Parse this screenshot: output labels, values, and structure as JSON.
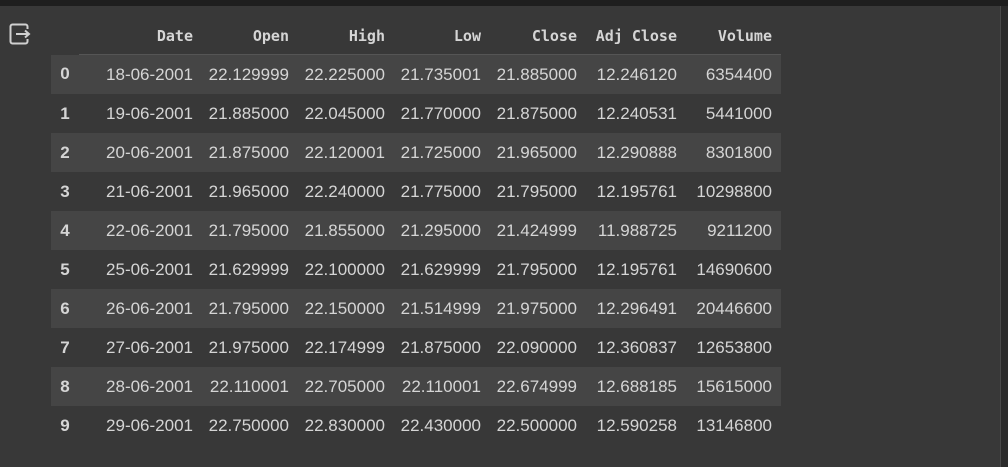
{
  "table": {
    "columns": [
      "Date",
      "Open",
      "High",
      "Low",
      "Close",
      "Adj Close",
      "Volume"
    ],
    "rows": [
      {
        "index": "0",
        "cells": [
          "18-06-2001",
          "22.129999",
          "22.225000",
          "21.735001",
          "21.885000",
          "12.246120",
          "6354400"
        ]
      },
      {
        "index": "1",
        "cells": [
          "19-06-2001",
          "21.885000",
          "22.045000",
          "21.770000",
          "21.875000",
          "12.240531",
          "5441000"
        ]
      },
      {
        "index": "2",
        "cells": [
          "20-06-2001",
          "21.875000",
          "22.120001",
          "21.725000",
          "21.965000",
          "12.290888",
          "8301800"
        ]
      },
      {
        "index": "3",
        "cells": [
          "21-06-2001",
          "21.965000",
          "22.240000",
          "21.775000",
          "21.795000",
          "12.195761",
          "10298800"
        ]
      },
      {
        "index": "4",
        "cells": [
          "22-06-2001",
          "21.795000",
          "21.855000",
          "21.295000",
          "21.424999",
          "11.988725",
          "9211200"
        ]
      },
      {
        "index": "5",
        "cells": [
          "25-06-2001",
          "21.629999",
          "22.100000",
          "21.629999",
          "21.795000",
          "12.195761",
          "14690600"
        ]
      },
      {
        "index": "6",
        "cells": [
          "26-06-2001",
          "21.795000",
          "22.150000",
          "21.514999",
          "21.975000",
          "12.296491",
          "20446600"
        ]
      },
      {
        "index": "7",
        "cells": [
          "27-06-2001",
          "21.975000",
          "22.174999",
          "21.875000",
          "22.090000",
          "12.360837",
          "12653800"
        ]
      },
      {
        "index": "8",
        "cells": [
          "28-06-2001",
          "22.110001",
          "22.705000",
          "22.110001",
          "22.674999",
          "12.688185",
          "15615000"
        ]
      },
      {
        "index": "9",
        "cells": [
          "29-06-2001",
          "22.750000",
          "22.830000",
          "22.430000",
          "22.500000",
          "12.590258",
          "13146800"
        ]
      }
    ]
  },
  "icons": {
    "output": "output-exit-icon"
  },
  "colors": {
    "background": "#383838",
    "row_stripe": "#454545",
    "text": "#d5d5d5"
  }
}
